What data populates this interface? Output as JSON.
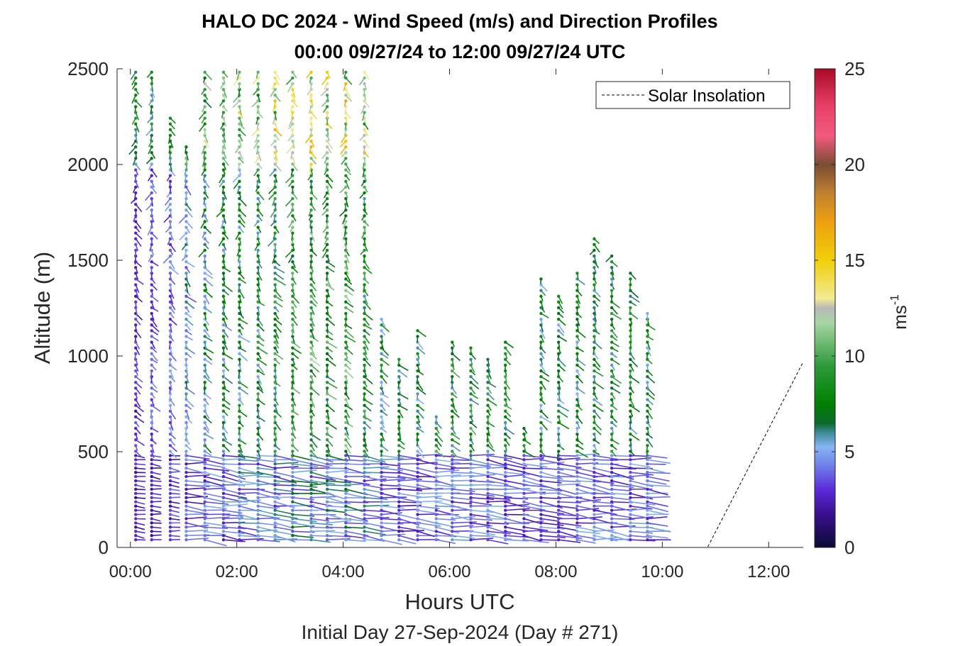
{
  "figure": {
    "title_line1": "HALO DC 2024 - Wind Speed (m/s) and Direction Profiles",
    "title_line2": "00:00 09/27/24 to 12:00 09/27/24  UTC",
    "xlabel": "Hours UTC",
    "subtitle": "Initial Day 27-Sep-2024 (Day # 271)",
    "ylabel": "Altitude (m)",
    "colorbar_label": "ms",
    "colorbar_label_exp": "-1",
    "legend_label": "Solar Insolation"
  },
  "chart_data": {
    "type": "wind_barb_profile",
    "title": "HALO DC 2024 - Wind Speed (m/s) and Direction Profiles",
    "xlabel": "Hours UTC",
    "ylabel": "Altitude (m)",
    "xlim": [
      -0.25,
      12.65
    ],
    "ylim": [
      0,
      2500
    ],
    "xticks": [
      0,
      2,
      4,
      6,
      8,
      10,
      12
    ],
    "xtick_labels": [
      "00:00",
      "02:00",
      "04:00",
      "06:00",
      "08:00",
      "10:00",
      "12:00"
    ],
    "yticks": [
      0,
      500,
      1000,
      1500,
      2000,
      2500
    ],
    "ytick_labels": [
      "0",
      "500",
      "1000",
      "1500",
      "2000",
      "2500"
    ],
    "colorbar": {
      "min": 0,
      "max": 25,
      "ticks": [
        0,
        5,
        10,
        15,
        20,
        25
      ],
      "label": "ms-1"
    },
    "legend": {
      "entries": [
        "Solar Insolation"
      ],
      "placement": "top-right"
    },
    "solar_insolation": {
      "x": [
        -0.25,
        10.85,
        12.65
      ],
      "y": [
        0,
        0,
        970
      ]
    },
    "profile_times_hours": [
      0.1,
      0.4,
      0.75,
      1.05,
      1.4,
      1.75,
      2.05,
      2.4,
      2.72,
      3.05,
      3.4,
      3.7,
      4.05,
      4.4,
      4.72,
      5.05,
      5.4,
      5.75,
      6.05,
      6.4,
      6.72,
      7.05,
      7.4,
      7.72,
      8.05,
      8.4,
      8.72,
      9.05,
      9.4,
      9.72
    ],
    "profile_top_altitude_m": [
      2500,
      2500,
      2250,
      2100,
      2500,
      2500,
      2500,
      2500,
      2500,
      2500,
      2500,
      2500,
      2500,
      2500,
      1200,
      1000,
      1150,
      700,
      1100,
      1050,
      1000,
      1100,
      650,
      1420,
      1330,
      1450,
      1620,
      1530,
      1450,
      1250
    ],
    "mean_low_level_speed_ms": [
      2.5,
      2.5,
      3,
      3.5,
      4,
      4,
      4.5,
      4.5,
      4.5,
      5,
      5,
      5,
      5,
      4.5,
      4,
      3.5,
      4,
      4,
      4,
      4,
      4,
      3.5,
      3.5,
      3.5,
      3.5,
      4,
      4,
      4,
      4,
      4
    ],
    "mean_mid_level_speed_ms": [
      3,
      3.5,
      4,
      5,
      6,
      6.5,
      7,
      7.5,
      8,
      8.5,
      9,
      8.5,
      9,
      8,
      7,
      7.5,
      7,
      8,
      8,
      8,
      8,
      8,
      7.5,
      7,
      7,
      7,
      7,
      7.5,
      7.5,
      7
    ]
  }
}
